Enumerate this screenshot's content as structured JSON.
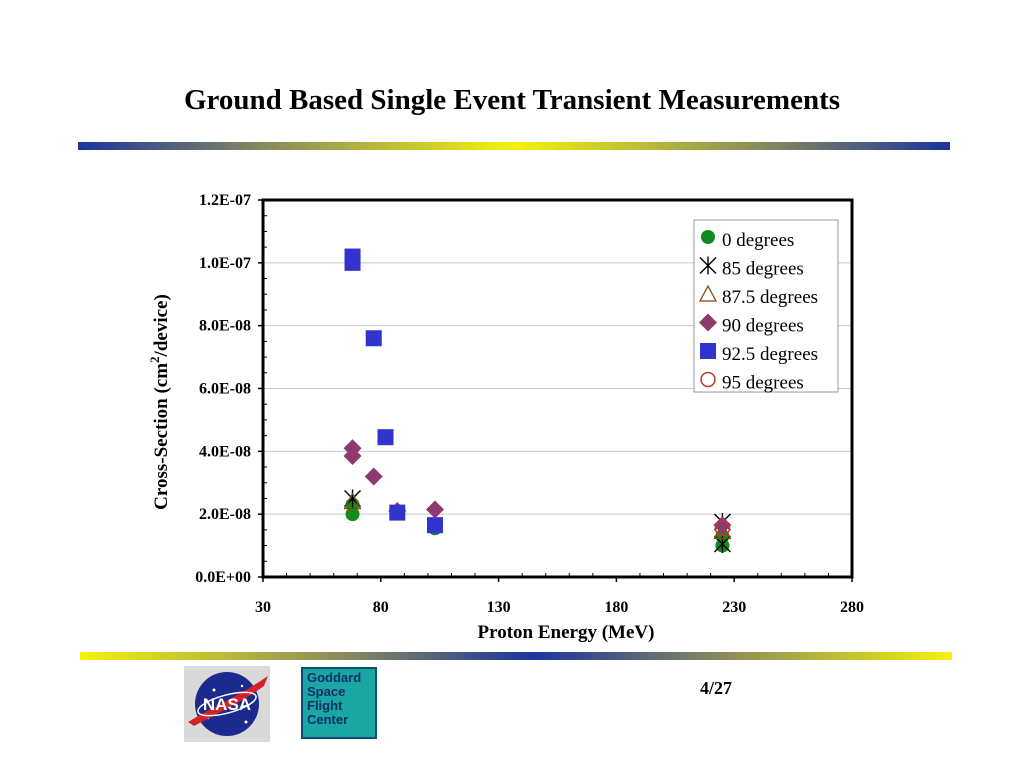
{
  "slide": {
    "title": "Ground Based Single Event Transient Measurements",
    "page_number": "4/27",
    "logos": {
      "nasa": "NASA",
      "gsfc": "Goddard\nSpace\nFlight\nCenter"
    }
  },
  "chart_data": {
    "type": "scatter",
    "xlabel": "Proton Energy (MeV)",
    "ylabel_parts": [
      "Cross-Section (cm",
      "2",
      "/device)"
    ],
    "xlim": [
      30,
      280
    ],
    "ylim": [
      0,
      1.2e-07
    ],
    "x_ticks": [
      30,
      80,
      130,
      180,
      230,
      280
    ],
    "x_tick_labels": [
      "30",
      "80",
      "130",
      "180",
      "230",
      "280"
    ],
    "y_ticks": [
      0,
      2e-08,
      4e-08,
      6e-08,
      8e-08,
      1e-07,
      1.2e-07
    ],
    "y_tick_labels": [
      "0.0E+00",
      "2.0E-08",
      "4.0E-08",
      "6.0E-08",
      "8.0E-08",
      "1.0E-07",
      "1.2E-07"
    ],
    "grid": "horizontal",
    "legend_position": "top-right",
    "series": [
      {
        "name": "0 degrees",
        "marker": "circle-filled",
        "color": "#128a1e",
        "points": [
          [
            68,
            2e-08
          ],
          [
            68,
            2.3e-08
          ],
          [
            103,
            1.55e-08
          ],
          [
            225,
            1e-08
          ],
          [
            225,
            1.3e-08
          ]
        ]
      },
      {
        "name": "85 degrees",
        "marker": "asterisk",
        "color": "#000000",
        "points": [
          [
            68,
            2.5e-08
          ],
          [
            225,
            1.75e-08
          ],
          [
            225,
            1.05e-08
          ]
        ]
      },
      {
        "name": "87.5 degrees",
        "marker": "triangle-open",
        "color": "#8b4513",
        "points": [
          [
            68,
            2.4e-08
          ],
          [
            225,
            1.45e-08
          ]
        ]
      },
      {
        "name": "90 degrees",
        "marker": "diamond-filled",
        "color": "#8e3a6e",
        "points": [
          [
            68,
            4.1e-08
          ],
          [
            68,
            3.85e-08
          ],
          [
            77,
            3.2e-08
          ],
          [
            87,
            2.1e-08
          ],
          [
            103,
            2.15e-08
          ],
          [
            225,
            1.65e-08
          ]
        ]
      },
      {
        "name": "92.5 degrees",
        "marker": "square-filled",
        "color": "#3232cc",
        "points": [
          [
            68,
            1.02e-07
          ],
          [
            68,
            1e-07
          ],
          [
            77,
            7.6e-08
          ],
          [
            82,
            4.45e-08
          ],
          [
            87,
            2.05e-08
          ],
          [
            103,
            1.65e-08
          ]
        ]
      },
      {
        "name": "95 degrees",
        "marker": "circle-open",
        "color": "#c0392b",
        "points": [
          [
            225,
            1.55e-08
          ]
        ]
      }
    ]
  }
}
